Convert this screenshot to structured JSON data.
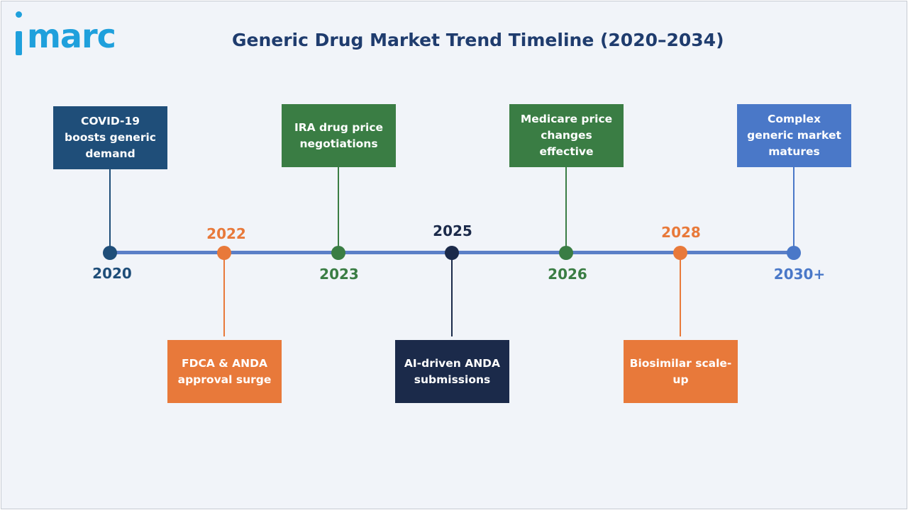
{
  "brand": {
    "logo_text": "imarc",
    "logo_rest": "marc",
    "logo_color": "#1fa0dc"
  },
  "title": "Generic Drug Market Trend Timeline (2020–2034)",
  "colors": {
    "title": "#1f3c6e",
    "line": "#5b7fc7",
    "navy": "#1f4e79",
    "orange": "#e8793a",
    "green": "#3a7d44",
    "dark_navy": "#1b2a4a",
    "blue": "#4a78c8"
  },
  "events": [
    {
      "year": "2020",
      "label": "COVID-19 boosts generic demand",
      "color": "#1f4e79",
      "side": "above"
    },
    {
      "year": "2022",
      "label": "FDCA & ANDA approval surge",
      "color": "#e8793a",
      "side": "below"
    },
    {
      "year": "2023",
      "label": "IRA drug price negotiations",
      "color": "#3a7d44",
      "side": "above"
    },
    {
      "year": "2025",
      "label": "AI-driven ANDA submissions",
      "color": "#1b2a4a",
      "side": "below"
    },
    {
      "year": "2026",
      "label": "Medicare price changes effective",
      "color": "#3a7d44",
      "side": "above"
    },
    {
      "year": "2028",
      "label": "Biosimilar scale-up",
      "color": "#e8793a",
      "side": "below"
    },
    {
      "year": "2030+",
      "label": "Complex generic market matures",
      "color": "#4a78c8",
      "side": "above"
    }
  ]
}
